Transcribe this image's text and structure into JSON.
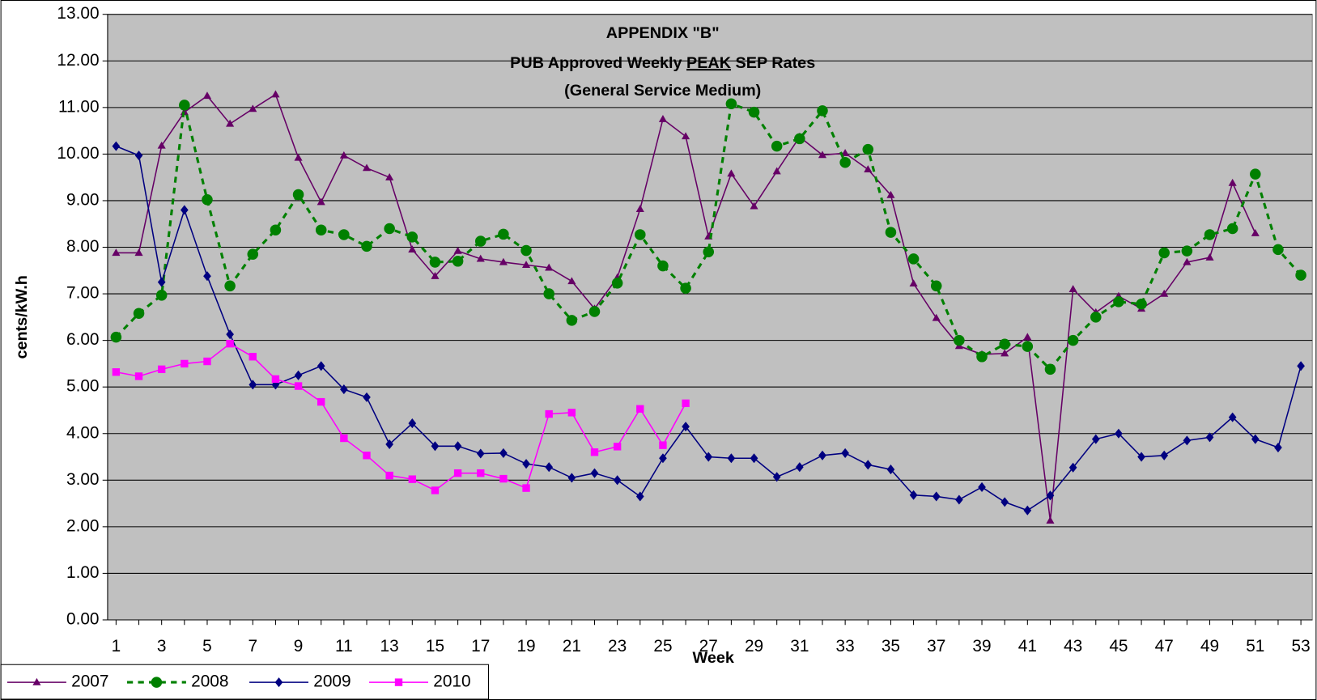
{
  "chart_data": {
    "type": "line",
    "title": [
      "APPENDIX \"B\"",
      [
        "PUB Approved Weekly ",
        "PEAK",
        " SEP Rates"
      ],
      "(General Service Medium)"
    ],
    "xlabel": "Week",
    "ylabel": "cents/kW.h",
    "x": [
      1,
      2,
      3,
      4,
      5,
      6,
      7,
      8,
      9,
      10,
      11,
      12,
      13,
      14,
      15,
      16,
      17,
      18,
      19,
      20,
      21,
      22,
      23,
      24,
      25,
      26,
      27,
      28,
      29,
      30,
      31,
      32,
      33,
      34,
      35,
      36,
      37,
      38,
      39,
      40,
      41,
      42,
      43,
      44,
      45,
      46,
      47,
      48,
      49,
      50,
      51,
      52,
      53
    ],
    "xlim": [
      0.63,
      53.5
    ],
    "xticks": [
      1,
      3,
      5,
      7,
      9,
      11,
      13,
      15,
      17,
      19,
      21,
      23,
      25,
      27,
      29,
      31,
      33,
      35,
      37,
      39,
      41,
      43,
      45,
      47,
      49,
      51,
      53
    ],
    "ylim": [
      0,
      13
    ],
    "yticks": [
      {
        "value": 0,
        "label": "0.00"
      },
      {
        "value": 1,
        "label": "1.00"
      },
      {
        "value": 2,
        "label": "2.00"
      },
      {
        "value": 3,
        "label": "3.00"
      },
      {
        "value": 4,
        "label": "4.00"
      },
      {
        "value": 5,
        "label": "5.00"
      },
      {
        "value": 6,
        "label": "6.00"
      },
      {
        "value": 7,
        "label": "7.00"
      },
      {
        "value": 8,
        "label": "8.00"
      },
      {
        "value": 9,
        "label": "9.00"
      },
      {
        "value": 10,
        "label": "10.00"
      },
      {
        "value": 11,
        "label": "11.00"
      },
      {
        "value": 12,
        "label": "12.00"
      },
      {
        "value": 13,
        "label": "13.00"
      }
    ],
    "grid": true,
    "legend": "bottom-left",
    "series": [
      {
        "name": "2007",
        "color": "#660066",
        "marker": "triangle",
        "line_style": "solid",
        "values": [
          7.88,
          7.88,
          10.18,
          10.9,
          11.25,
          10.65,
          10.97,
          11.28,
          9.92,
          8.97,
          9.97,
          9.7,
          9.5,
          7.95,
          7.38,
          7.92,
          7.75,
          7.68,
          7.62,
          7.56,
          7.27,
          6.68,
          7.35,
          8.82,
          10.75,
          10.38,
          8.23,
          9.58,
          8.88,
          9.63,
          10.37,
          9.98,
          10.02,
          9.67,
          9.12,
          7.22,
          6.48,
          5.88,
          5.7,
          5.72,
          6.07,
          2.13,
          7.1,
          6.6,
          6.95,
          6.68,
          7.0,
          7.68,
          7.78,
          9.38,
          8.3,
          null,
          null
        ]
      },
      {
        "name": "2008",
        "color": "#008000",
        "marker": "circle",
        "line_style": "dashed",
        "values": [
          6.07,
          6.58,
          6.97,
          11.05,
          9.02,
          7.17,
          7.85,
          8.37,
          9.13,
          8.37,
          8.27,
          8.02,
          8.4,
          8.22,
          7.68,
          7.7,
          8.13,
          8.28,
          7.93,
          7.0,
          6.43,
          6.62,
          7.23,
          8.27,
          7.6,
          7.12,
          7.9,
          11.08,
          10.9,
          10.17,
          10.33,
          10.93,
          9.82,
          10.1,
          8.32,
          7.75,
          7.17,
          6.0,
          5.65,
          5.92,
          5.87,
          5.38,
          6.0,
          6.5,
          6.83,
          6.78,
          7.88,
          7.92,
          8.27,
          8.4,
          9.57,
          7.95,
          7.4
        ]
      },
      {
        "name": "2009",
        "color": "#000080",
        "marker": "diamond",
        "line_style": "solid",
        "values": [
          10.17,
          9.97,
          7.25,
          8.8,
          7.38,
          6.13,
          5.05,
          5.05,
          5.25,
          5.45,
          4.95,
          4.78,
          3.77,
          4.22,
          3.73,
          3.73,
          3.57,
          3.58,
          3.35,
          3.28,
          3.05,
          3.15,
          3.0,
          2.65,
          3.47,
          4.15,
          3.5,
          3.47,
          3.47,
          3.07,
          3.28,
          3.53,
          3.58,
          3.33,
          3.23,
          2.68,
          2.65,
          2.58,
          2.85,
          2.53,
          2.35,
          2.67,
          3.27,
          3.88,
          4.0,
          3.5,
          3.53,
          3.85,
          3.92,
          4.35,
          3.88,
          3.7,
          5.45
        ]
      },
      {
        "name": "2010",
        "color": "#ff00ff",
        "marker": "square",
        "line_style": "solid",
        "values": [
          5.32,
          5.23,
          5.38,
          5.5,
          5.55,
          5.93,
          5.65,
          5.17,
          5.02,
          4.68,
          3.9,
          3.53,
          3.1,
          3.02,
          2.78,
          3.15,
          3.15,
          3.03,
          2.83,
          4.42,
          4.45,
          3.6,
          3.72,
          4.53,
          3.75,
          4.65,
          null,
          null,
          null,
          null,
          null,
          null,
          null,
          null,
          null,
          null,
          null,
          null,
          null,
          null,
          null,
          null,
          null,
          null,
          null,
          null,
          null,
          null,
          null,
          null,
          null,
          null,
          null
        ]
      }
    ]
  }
}
